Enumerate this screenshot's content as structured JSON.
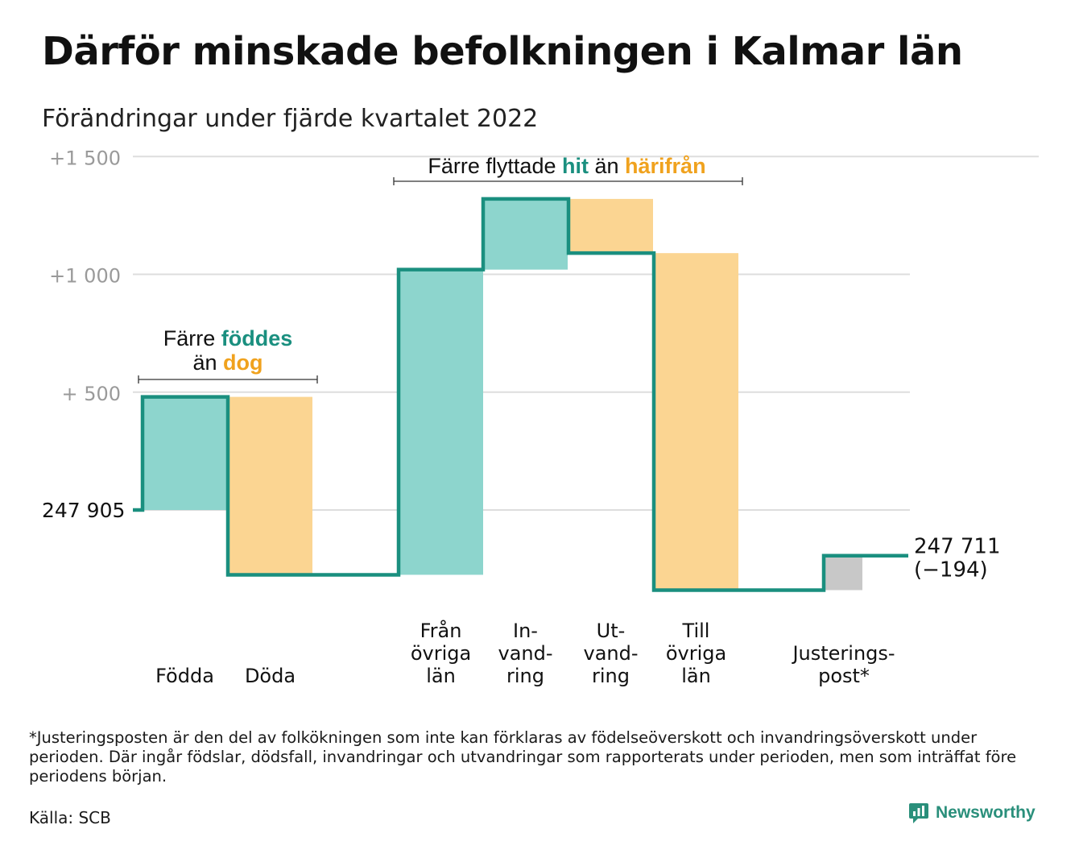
{
  "title": "Därför minskade befolkningen i Kalmar län",
  "subtitle": "Förändringar under fjärde kvartalet 2022",
  "chart_data": {
    "type": "waterfall",
    "start_value": 247905,
    "start_label": "247 905",
    "end_value": 247711,
    "end_label": [
      "247 711",
      "(−194)"
    ],
    "yticks": [
      {
        "value": 1500,
        "label": "+1 500"
      },
      {
        "value": 1000,
        "label": "+1 000"
      },
      {
        "value": 500,
        "label": "+ 500"
      }
    ],
    "ylim": [
      -450,
      1500
    ],
    "grid": true,
    "steps": [
      {
        "key": "fodda",
        "label": [
          "Födda"
        ],
        "change": 480,
        "kind": "in"
      },
      {
        "key": "doda",
        "label": [
          "Döda"
        ],
        "change": -755,
        "kind": "out"
      },
      {
        "key": "fran",
        "label": [
          "Från",
          "övriga",
          "län"
        ],
        "change": 1295,
        "kind": "in"
      },
      {
        "key": "invand",
        "label": [
          "In-",
          "vand-",
          "ring"
        ],
        "change": 300,
        "kind": "in"
      },
      {
        "key": "utvand",
        "label": [
          "Ut-",
          "vand-",
          "ring"
        ],
        "change": -230,
        "kind": "out"
      },
      {
        "key": "till",
        "label": [
          "Till",
          "övriga",
          "län"
        ],
        "change": -1430,
        "kind": "out"
      },
      {
        "key": "just",
        "label": [
          "Justerings-",
          "post*"
        ],
        "change": 146,
        "kind": "adj"
      }
    ],
    "annotations": [
      {
        "key": "birth",
        "line1": [
          {
            "t": "Färre ",
            "c": "text"
          },
          {
            "t": "föddes",
            "c": "in"
          }
        ],
        "line2": [
          {
            "t": "än ",
            "c": "text"
          },
          {
            "t": "dog",
            "c": "out"
          }
        ]
      },
      {
        "key": "move",
        "line1": [
          {
            "t": "Färre flyttade ",
            "c": "text"
          },
          {
            "t": "hit",
            "c": "in"
          },
          {
            "t": " än ",
            "c": "text"
          },
          {
            "t": "härifrån",
            "c": "out"
          }
        ]
      }
    ],
    "colors": {
      "in": "#8dd5cd",
      "out": "#fbd592",
      "adj": "#c8c8c8",
      "line": "#1a8f7f",
      "in_text": "#1a8f7f",
      "out_text": "#f0a21e",
      "text": "#111111",
      "grid": "#dddddd",
      "tick": "#9a9a9a"
    }
  },
  "footnote": "*Justeringsposten är den del av folkökningen som inte kan förklaras av födelseöverskott och invandringsöverskott under perioden. Där ingår födslar, dödsfall, invandringar och utvandringar som rapporterats under perioden, men som inträffat före periodens början.",
  "source": "Källa: SCB",
  "brand": {
    "name": "Newsworthy",
    "icon": "newsworthy-logo-icon"
  }
}
